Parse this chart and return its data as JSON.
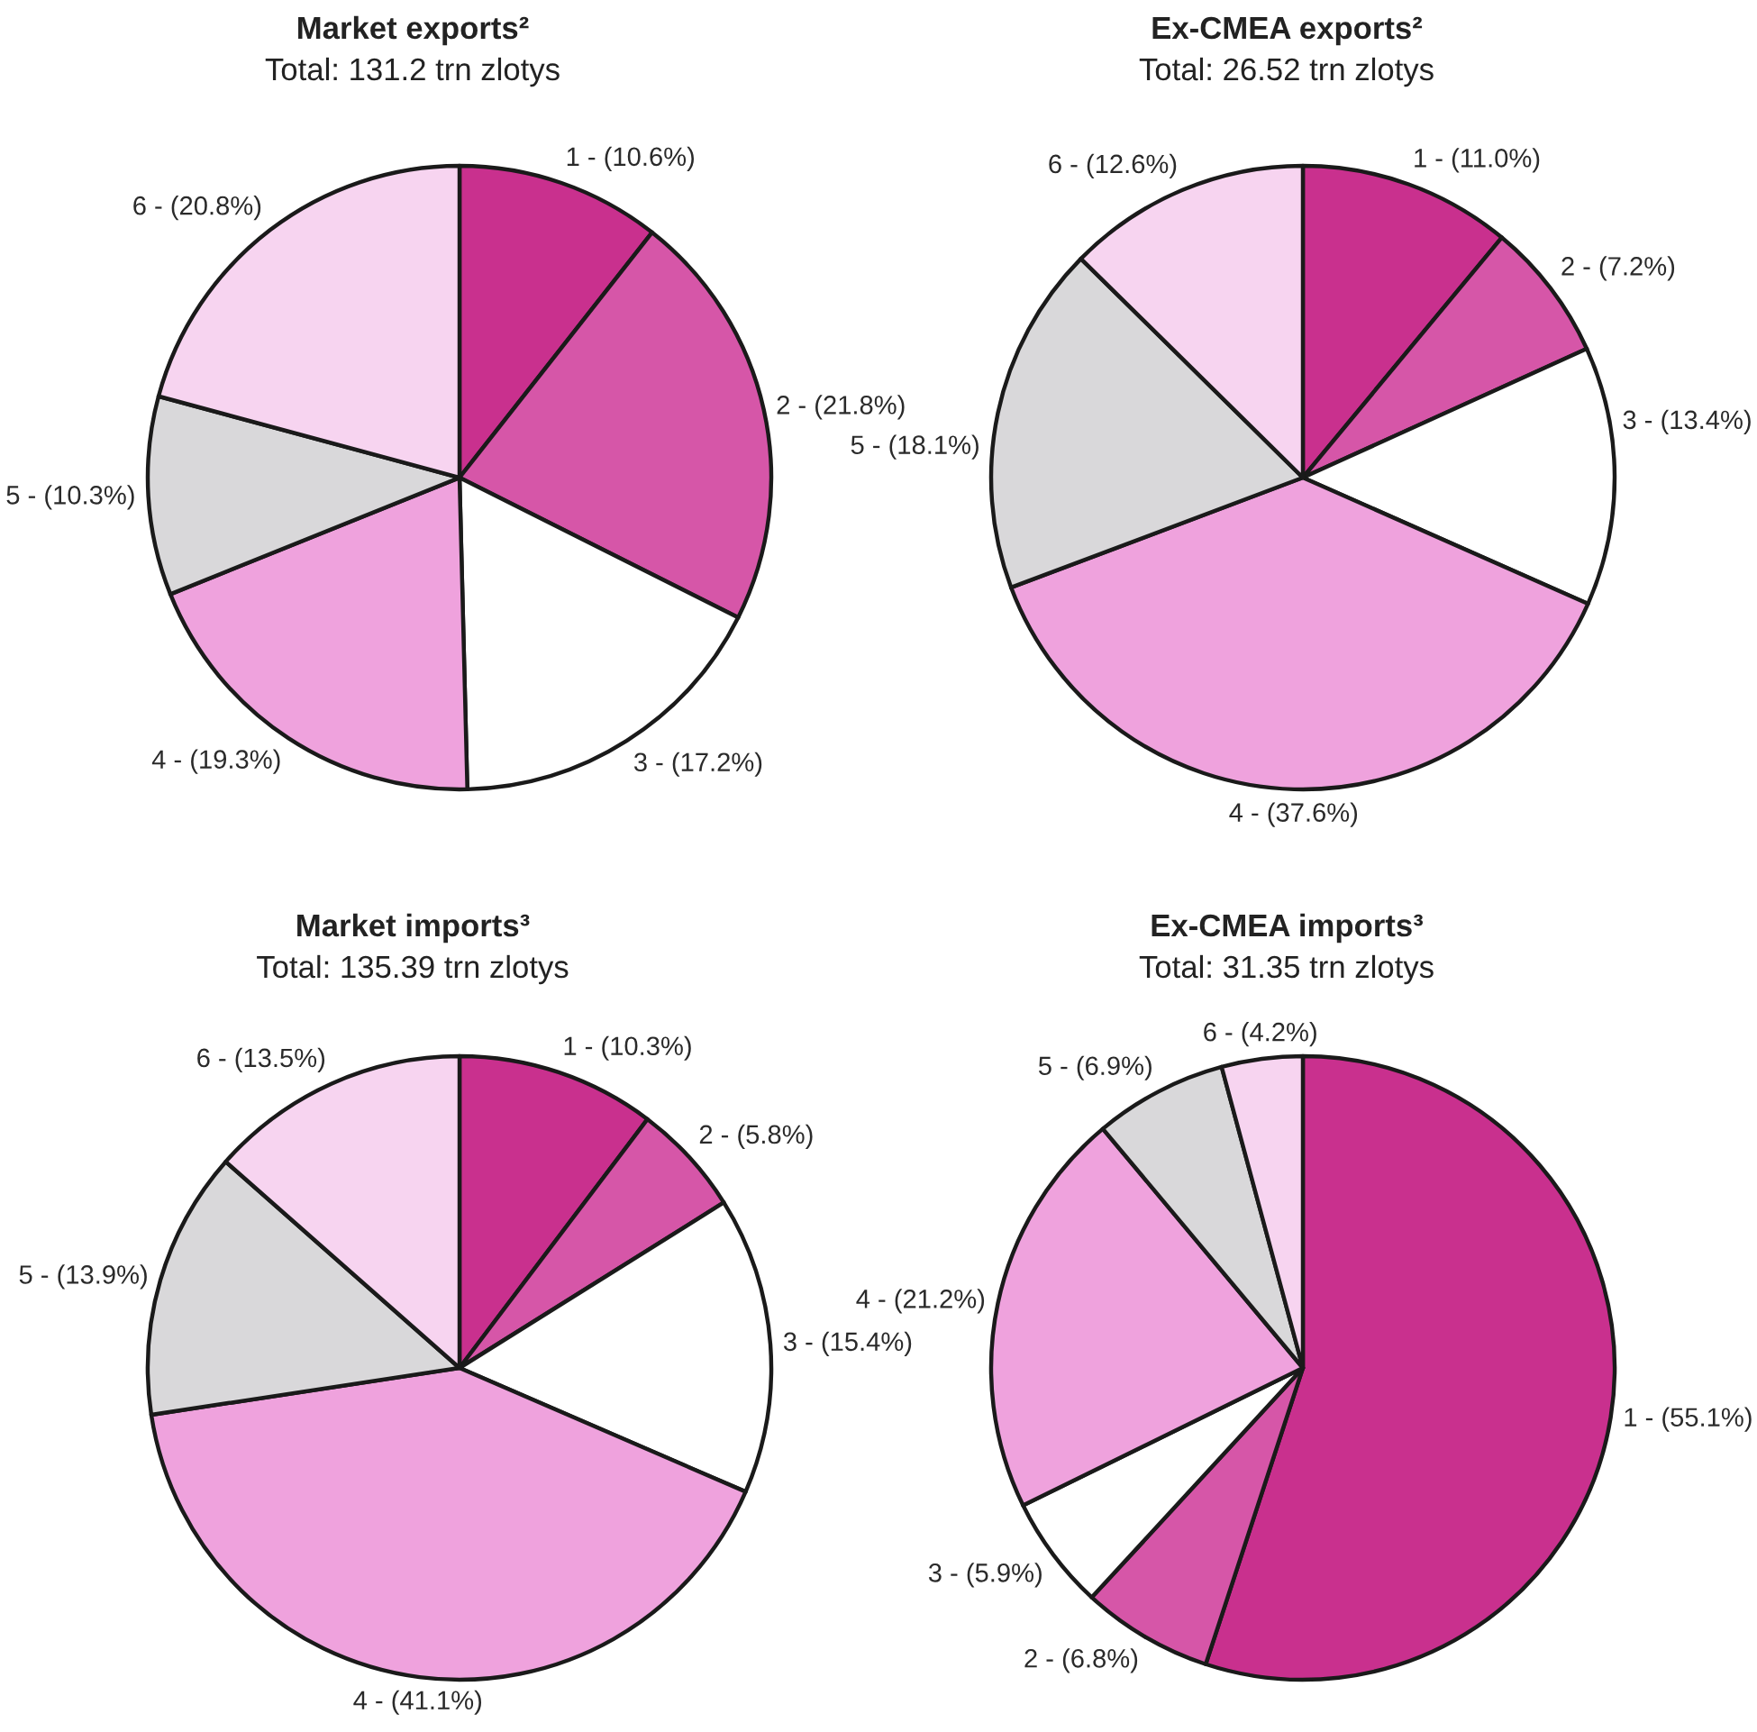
{
  "chart_data": [
    {
      "type": "pie",
      "title": "Market exports²",
      "subtitle": "Total: 131.2 trn zlotys",
      "categories": [
        "1",
        "2",
        "3",
        "4",
        "5",
        "6"
      ],
      "values": [
        10.6,
        21.8,
        17.2,
        19.3,
        10.3,
        20.8
      ],
      "colors": [
        "#c9308e",
        "#d656a8",
        "#ffffff",
        "#efa2dd",
        "#d9d8da",
        "#f7d4f0"
      ],
      "value_labels": [
        "- (10.6%)",
        "- (21.8%)",
        "- (17.2%)",
        "- (19.3%)",
        "- (10.3%)",
        "- (20.8%)"
      ]
    },
    {
      "type": "pie",
      "title": "Ex-CMEA exports²",
      "subtitle": "Total: 26.52 trn zlotys",
      "categories": [
        "1",
        "2",
        "3",
        "4",
        "5",
        "6"
      ],
      "values": [
        11.0,
        7.2,
        13.4,
        37.6,
        18.1,
        12.6
      ],
      "colors": [
        "#c9308e",
        "#d656a8",
        "#ffffff",
        "#efa2dd",
        "#d9d8da",
        "#f7d4f0"
      ],
      "value_labels": [
        "- (11.0%)",
        "- (7.2%)",
        "- (13.4%)",
        "- (37.6%)",
        "- (18.1%)",
        "- (12.6%)"
      ]
    },
    {
      "type": "pie",
      "title": "Market imports³",
      "subtitle": "Total: 135.39 trn zlotys",
      "categories": [
        "1",
        "2",
        "3",
        "4",
        "5",
        "6"
      ],
      "values": [
        10.3,
        5.8,
        15.4,
        41.1,
        13.9,
        13.5
      ],
      "colors": [
        "#c9308e",
        "#d656a8",
        "#ffffff",
        "#efa2dd",
        "#d9d8da",
        "#f7d4f0"
      ],
      "value_labels": [
        "- (10.3%)",
        "- (5.8%)",
        "- (15.4%)",
        "- (41.1%)",
        "- (13.9%)",
        "- (13.5%)"
      ]
    },
    {
      "type": "pie",
      "title": "Ex-CMEA imports³",
      "subtitle": "Total: 31.35 trn zlotys",
      "categories": [
        "1",
        "2",
        "3",
        "4",
        "5",
        "6"
      ],
      "values": [
        55.1,
        6.8,
        5.9,
        21.2,
        6.9,
        4.2
      ],
      "colors": [
        "#c9308e",
        "#d656a8",
        "#ffffff",
        "#efa2dd",
        "#d9d8da",
        "#f7d4f0"
      ],
      "value_labels": [
        "- (55.1%)",
        "- (6.8%)",
        "- (5.9%)",
        "- (21.2%)",
        "- (6.9%)",
        "- (4.2%)"
      ]
    }
  ]
}
